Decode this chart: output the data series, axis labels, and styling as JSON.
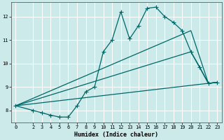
{
  "xlabel": "Humidex (Indice chaleur)",
  "bg_color": "#cceaea",
  "grid_color": "#ffffff",
  "line_color": "#006666",
  "xlim": [
    -0.5,
    23.5
  ],
  "ylim": [
    7.5,
    12.6
  ],
  "yticks": [
    8,
    9,
    10,
    11,
    12
  ],
  "xticks": [
    0,
    2,
    3,
    4,
    5,
    6,
    7,
    8,
    9,
    10,
    11,
    12,
    13,
    14,
    15,
    16,
    17,
    18,
    19,
    20,
    21,
    22,
    23
  ],
  "line1_x": [
    0,
    2,
    3,
    4,
    5,
    6,
    7,
    8,
    9,
    10,
    11,
    12,
    13,
    14,
    15,
    16,
    17,
    18,
    19,
    20,
    21,
    22,
    23
  ],
  "line1_y": [
    8.2,
    8.0,
    7.9,
    7.8,
    7.72,
    7.72,
    8.2,
    8.8,
    9.0,
    10.5,
    11.0,
    12.2,
    11.05,
    11.6,
    12.35,
    12.4,
    12.0,
    11.75,
    11.4,
    10.5,
    9.85,
    9.15,
    9.2
  ],
  "line2_x": [
    0,
    20,
    22,
    23
  ],
  "line2_y": [
    8.2,
    10.5,
    9.15,
    9.2
  ],
  "line3_x": [
    0,
    20,
    22,
    23
  ],
  "line3_y": [
    8.2,
    11.4,
    9.15,
    9.2
  ],
  "line4_x": [
    0,
    23
  ],
  "line4_y": [
    8.2,
    9.2
  ]
}
